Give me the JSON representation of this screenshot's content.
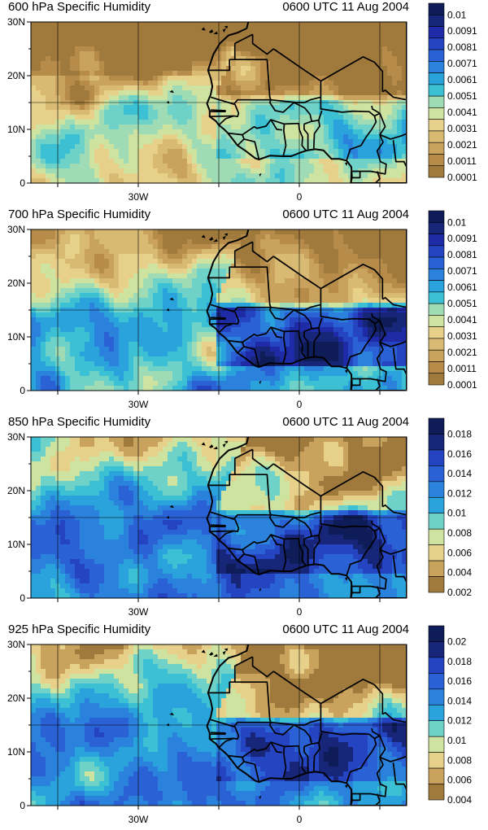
{
  "figure": {
    "panels": [
      {
        "left_title": "600 hPa Specific Humidity",
        "right_title": "0600 UTC 11 Aug 2004",
        "y_ticks": [
          "30N",
          "20N",
          "10N",
          "0"
        ],
        "x_ticks": [
          "30W",
          "0"
        ],
        "colorbar": [
          "0.01",
          "0.0091",
          "0.0081",
          "0.0071",
          "0.0061",
          "0.0051",
          "0.0041",
          "0.0031",
          "0.0021",
          "0.0011",
          "0.0001"
        ],
        "colorbar_count": 15,
        "palette": [
          "#a07a3c",
          "#b78c4b",
          "#c9a35d",
          "#d9ba72",
          "#e6d08a",
          "#cfe3a0",
          "#9fdcb6",
          "#6fd2c8",
          "#3cc1d4",
          "#2aa3dc",
          "#2a82dc",
          "#2a62d6",
          "#2444c2",
          "#1f2aa6",
          "#18267a",
          "#0e1c58"
        ],
        "level": 0.35
      },
      {
        "left_title": "700 hPa Specific Humidity",
        "right_title": "0600 UTC 11 Aug 2004",
        "y_ticks": [
          "30N",
          "20N",
          "10N",
          "0"
        ],
        "x_ticks": [
          "30W",
          "0"
        ],
        "colorbar": [
          "0.01",
          "0.0091",
          "0.0081",
          "0.0071",
          "0.0061",
          "0.0051",
          "0.0041",
          "0.0031",
          "0.0021",
          "0.0011",
          "0.0001"
        ],
        "colorbar_count": 15,
        "palette": [
          "#a07a3c",
          "#b78c4b",
          "#c9a35d",
          "#d9ba72",
          "#e6d08a",
          "#cfe3a0",
          "#9fdcb6",
          "#6fd2c8",
          "#3cc1d4",
          "#2aa3dc",
          "#2a82dc",
          "#2a62d6",
          "#2444c2",
          "#1f2aa6",
          "#18267a",
          "#0e1c58"
        ],
        "level": 0.55
      },
      {
        "left_title": "850 hPa Specific Humidity",
        "right_title": "0600 UTC 11 Aug 2004",
        "y_ticks": [
          "30N",
          "20N",
          "10N",
          "0"
        ],
        "x_ticks": [
          "30W",
          "0"
        ],
        "colorbar": [
          "0.018",
          "0.016",
          "0.014",
          "0.012",
          "0.01",
          "0.008",
          "0.006",
          "0.004",
          "0.002"
        ],
        "colorbar_count": 11,
        "palette": [
          "#a07a3c",
          "#c9a35d",
          "#e6d08a",
          "#cfe3a0",
          "#6fd2c8",
          "#3cc1d4",
          "#2aa3dc",
          "#2a82dc",
          "#2a62d6",
          "#2444c2",
          "#18267a",
          "#0e1c58"
        ],
        "level": 0.65
      },
      {
        "left_title": "925 hPa Specific Humidity",
        "right_title": "0600 UTC 11 Aug 2004",
        "y_ticks": [
          "30N",
          "20N",
          "10N",
          "0"
        ],
        "x_ticks": [
          "30W",
          "0"
        ],
        "colorbar": [
          "0.02",
          "0.018",
          "0.016",
          "0.014",
          "0.012",
          "0.01",
          "0.008",
          "0.006",
          "0.004"
        ],
        "colorbar_count": 11,
        "palette": [
          "#a07a3c",
          "#c9a35d",
          "#e6d08a",
          "#cfe3a0",
          "#6fd2c8",
          "#3cc1d4",
          "#2aa3dc",
          "#2a82dc",
          "#2a62d6",
          "#2444c2",
          "#18267a",
          "#0e1c58"
        ],
        "level": 0.62
      }
    ]
  }
}
